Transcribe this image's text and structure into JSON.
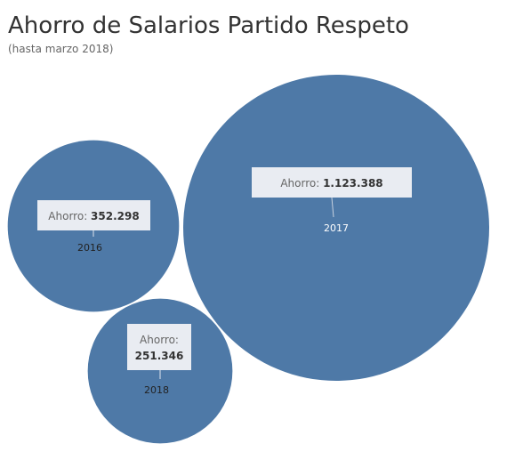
{
  "chart_data": {
    "type": "bubble",
    "title": "Ahorro de Salarios Partido Respeto",
    "subtitle": "(hasta marzo 2018)",
    "color": "#4e79a7",
    "tooltip_label": "Ahorro:",
    "bubbles": [
      {
        "year": "2016",
        "value": 352298,
        "value_label": "352.298"
      },
      {
        "year": "2017",
        "value": 1123388,
        "value_label": "1.123.388"
      },
      {
        "year": "2018",
        "value": 251346,
        "value_label": "251.346"
      }
    ]
  }
}
